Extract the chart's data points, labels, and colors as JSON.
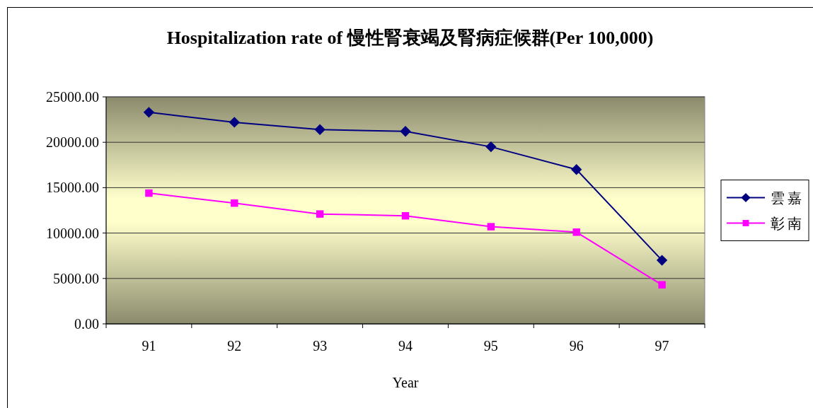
{
  "chart_data": {
    "type": "line",
    "title": "Hospitalization rate of 慢性腎衰竭及腎病症候群(Per 100,000)",
    "xlabel": "Year",
    "categories": [
      "91",
      "92",
      "93",
      "94",
      "95",
      "96",
      "97"
    ],
    "series": [
      {
        "name": "雲嘉",
        "color": "#000080",
        "marker": "diamond",
        "values": [
          23300,
          22200,
          21400,
          21200,
          19500,
          17000,
          7000
        ]
      },
      {
        "name": "彰南",
        "color": "#ff00ff",
        "marker": "square",
        "values": [
          14400,
          13300,
          12100,
          11900,
          10700,
          10100,
          4300
        ]
      }
    ],
    "ylim": [
      0,
      25000
    ],
    "yticks": [
      {
        "value": 0,
        "label": "0.00"
      },
      {
        "value": 5000,
        "label": "5000.00"
      },
      {
        "value": 10000,
        "label": "10000.00"
      },
      {
        "value": 15000,
        "label": "15000.00"
      },
      {
        "value": 20000,
        "label": "20000.00"
      },
      {
        "value": 25000,
        "label": "25000.00"
      }
    ],
    "grid": "y",
    "legend": "right",
    "line_style": "solid"
  }
}
